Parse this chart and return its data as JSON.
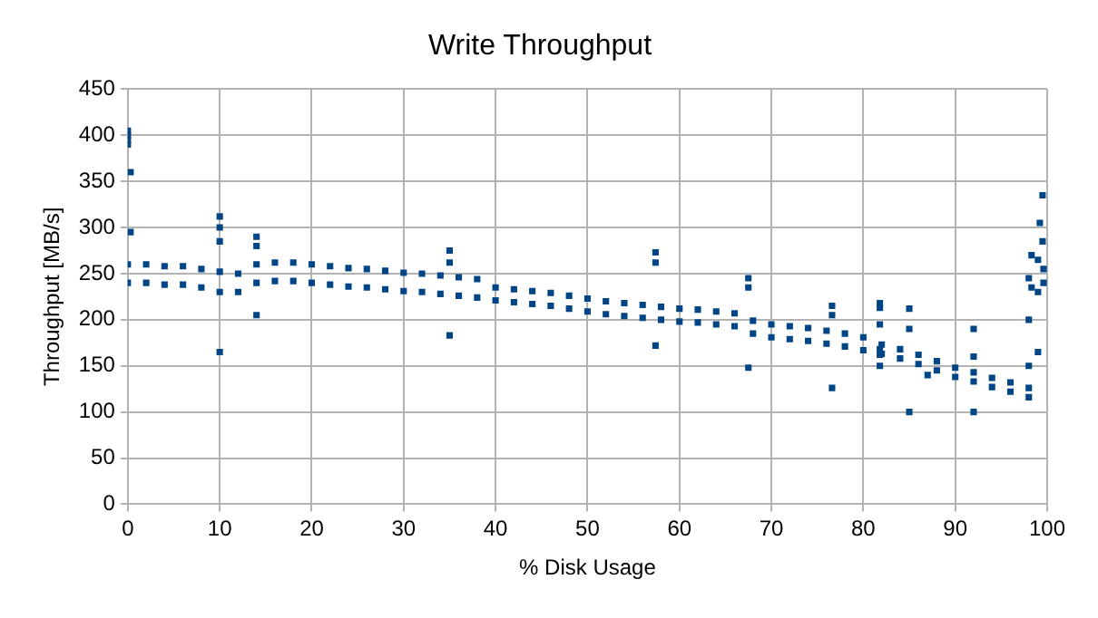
{
  "chart_data": {
    "type": "scatter",
    "title": "Write Throughput",
    "xlabel": "% Disk Usage",
    "ylabel": "Throughput [MB/s]",
    "xlim": [
      0,
      100
    ],
    "xticks": [
      0,
      10,
      20,
      30,
      40,
      50,
      60,
      70,
      80,
      90,
      100
    ],
    "ylim": [
      0,
      450
    ],
    "yticks": [
      0,
      50,
      100,
      150,
      200,
      250,
      300,
      350,
      400,
      450
    ],
    "grid": true,
    "legend": false,
    "marker": "square",
    "series": [
      {
        "color": "#004586",
        "x": [
          0,
          0,
          2,
          2,
          4,
          4,
          6,
          6,
          8,
          8,
          10,
          10,
          12,
          12,
          14,
          14,
          16,
          16,
          18,
          18,
          20,
          20,
          22,
          22,
          24,
          24,
          26,
          26,
          28,
          28,
          30,
          30,
          32,
          32,
          34,
          34,
          36,
          36,
          38,
          38,
          40,
          40,
          42,
          42,
          44,
          44,
          46,
          46,
          48,
          48,
          50,
          50,
          52,
          52,
          54,
          54,
          56,
          56,
          58,
          58,
          60,
          60,
          62,
          62,
          64,
          64,
          66,
          66,
          68,
          68,
          70,
          70,
          72,
          72,
          74,
          74,
          76,
          76,
          78,
          78,
          80,
          80,
          82,
          82,
          84,
          84,
          86,
          86,
          88,
          88,
          90,
          90,
          92,
          92,
          94,
          94,
          96,
          96,
          98,
          98,
          98.3,
          98.3,
          99,
          99,
          99.6,
          99.6,
          0,
          0,
          0,
          0,
          0.3,
          0.3,
          10,
          10,
          10,
          10,
          14,
          14,
          14,
          35,
          35,
          35,
          57.4,
          57.4,
          57.4,
          67.5,
          67.5,
          67.5,
          76.6,
          76.6,
          76.6,
          81.8,
          81.8,
          81.8,
          81.8,
          81.8,
          81.8,
          85,
          85,
          85,
          87,
          92,
          92,
          92,
          98,
          98,
          98,
          99.5,
          99.5,
          99.2,
          99
        ],
        "values": [
          260,
          240,
          260,
          240,
          258,
          238,
          258,
          238,
          255,
          235,
          252,
          230,
          250,
          230,
          260,
          240,
          262,
          242,
          262,
          242,
          260,
          240,
          258,
          238,
          256,
          236,
          255,
          235,
          253,
          233,
          251,
          231,
          250,
          230,
          248,
          228,
          246,
          226,
          244,
          224,
          235,
          221,
          233,
          219,
          231,
          217,
          229,
          215,
          226,
          212,
          223,
          209,
          220,
          206,
          218,
          204,
          216,
          202,
          214,
          200,
          212,
          198,
          211,
          197,
          209,
          195,
          207,
          193,
          199,
          185,
          195,
          181,
          193,
          179,
          191,
          177,
          188,
          174,
          185,
          171,
          181,
          167,
          173,
          163,
          168,
          158,
          162,
          152,
          155,
          145,
          148,
          138,
          143,
          133,
          137,
          127,
          132,
          122,
          126,
          116,
          270,
          235,
          265,
          230,
          255,
          240,
          400,
          395,
          405,
          390,
          360,
          295,
          312,
          300,
          285,
          165,
          290,
          280,
          205,
          275,
          262,
          183,
          273,
          262,
          172,
          245,
          235,
          148,
          215,
          205,
          126,
          218,
          213,
          195,
          168,
          162,
          150,
          212,
          190,
          100,
          140,
          190,
          160,
          100,
          245,
          200,
          150,
          335,
          285,
          305,
          165
        ]
      }
    ]
  }
}
